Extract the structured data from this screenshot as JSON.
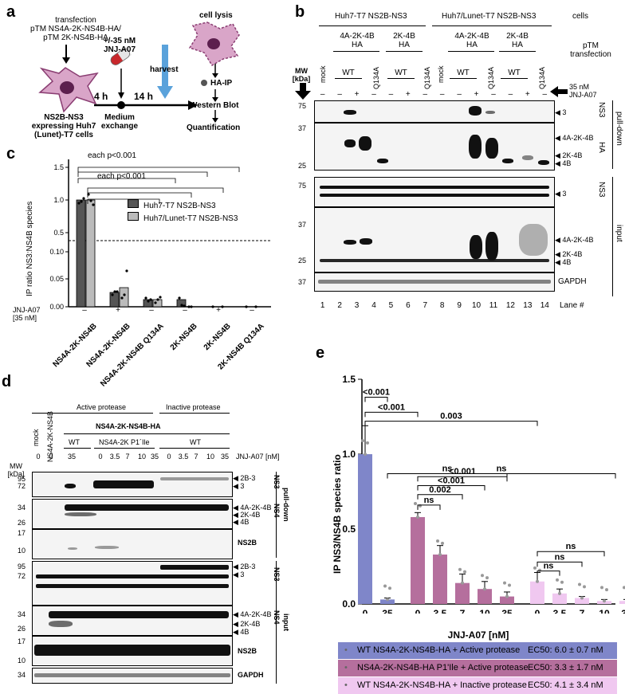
{
  "panels": {
    "a": "a",
    "b": "b",
    "c": "c",
    "d": "d",
    "e": "e"
  },
  "schematic": {
    "transfection_lines": [
      "transfection",
      "pTM NS4A-2K-NS4B-HA/",
      "pTM 2K-NS4B-HA"
    ],
    "cells_lines": [
      "NS2B-NS3",
      "expressing Huh7",
      "(Lunet)-T7 cells"
    ],
    "drug_lines": [
      "+/-35 nM",
      "JNJ-A07"
    ],
    "time1": "4 h",
    "time2": "14 h",
    "medium_lines": [
      "Medium",
      "exchange"
    ],
    "harvest": "harvest",
    "steps": [
      "cell lysis",
      "HA-IP",
      "Western Blot",
      "Quantification"
    ]
  },
  "panel_b": {
    "cells_label": "cells",
    "group1": "Huh7-T7 NS2B-NS3",
    "group2": "Huh7/Lunet-T7 NS2B-NS3",
    "construct1": [
      "4A-2K-4B",
      "HA"
    ],
    "construct2": [
      "2K-4B",
      "HA"
    ],
    "ptm": [
      "pTM",
      "transfection"
    ],
    "mock": "mock",
    "wt": "WT",
    "q134a": "Q134A",
    "drug": [
      "35 nM",
      "JNJ-A07"
    ],
    "mw": [
      "MW",
      "[kDa]"
    ],
    "signs": [
      "–",
      "–",
      "+",
      "–",
      "–",
      "+",
      "–",
      "–",
      "–",
      "+",
      "–",
      "–",
      "+",
      "–"
    ],
    "lane_numbers": [
      "1",
      "2",
      "3",
      "4",
      "5",
      "6",
      "7",
      "8",
      "9",
      "10",
      "11",
      "12",
      "13",
      "14"
    ],
    "lane_label": "Lane #",
    "pulldown": "pull-down",
    "input": "input",
    "ab_ns3": "NS3",
    "ab_ha": "HA",
    "ab_gapdh": "GAPDH",
    "mw_marks": {
      "m75": "75",
      "m37": "37",
      "m25": "25"
    },
    "band_labels": {
      "three": "3",
      "b4a": "4A-2K-4B",
      "b2k": "2K-4B",
      "b4b": "4B"
    }
  },
  "panel_c": {
    "ylabel": "IP ratio NS3:NS4B species",
    "yticks_top": [
      "1.5",
      "1.0",
      "0.5"
    ],
    "yticks_bottom": [
      "0.10",
      "0.05",
      "0.00"
    ],
    "legend": [
      "Huh7-T7 NS2B-NS3",
      "Huh7/Lunet-T7 NS2B-NS3"
    ],
    "sig1": "each p<0.001",
    "sig2": "each p<0.001",
    "drug_label": [
      "JNJ-A07",
      "[35 nM]"
    ],
    "signs": [
      "–",
      "+",
      "–",
      "–",
      "+",
      "–"
    ],
    "categories": [
      "NS4A-2K-NS4B",
      "NS4A-2K-NS4B",
      "NS4A-2K-NS4B Q134A",
      "2K-NS4B",
      "2K-NS4B",
      "2K-NS4B Q134A"
    ]
  },
  "panel_d": {
    "active": "Active protease",
    "inactive": "Inactive protease",
    "mock": "mock",
    "ctrl": "NS4A-2K-NS4B",
    "construct": "NS4A-2K-NS4B-HA",
    "wt": "WT",
    "p1": "NS4A-2K P1´Ile",
    "conc": [
      "0",
      "0",
      "35",
      "0",
      "3.5",
      "7",
      "10",
      "35",
      "0",
      "3.5",
      "7",
      "10",
      "35"
    ],
    "conc_label": "JNJ-A07 [nM]",
    "mw": [
      "MW",
      "[kDa]"
    ],
    "pulldown": "pull-down",
    "input": "input",
    "ab": {
      "ns3": "NS3",
      "ns4": "NS4",
      "ns2b": "NS2B",
      "gapdh": "GAPDH"
    },
    "marks": {
      "m95": "95",
      "m72": "72",
      "m34": "34",
      "m26": "26",
      "m17": "17",
      "m10": "10"
    },
    "band_labels": {
      "b2b3": "2B-3",
      "three": "3",
      "b4a": "4A-2K-4B",
      "b2k": "2K-4B",
      "b4b": "4B"
    }
  },
  "chart_data": {
    "type": "bar",
    "ylabel": "IP NS3/NS4B species ratio",
    "xlabel": "JNJ-A07 [nM]",
    "ylim": [
      0,
      1.5
    ],
    "yticks": [
      "0.0",
      "0.5",
      "1.0",
      "1.5"
    ],
    "series": [
      {
        "name": "WT NS4A-2K-NS4B-HA + Active protease",
        "x": [
          "0",
          "35"
        ],
        "values": [
          1.0,
          0.03
        ],
        "errors": [
          0.19,
          0.01
        ],
        "color": "#7f86c9",
        "ec50": "EC50: 6.0 ± 0.7 nM"
      },
      {
        "name": "NS4A-2K-NS4B-HA P1'Ile + Active protease",
        "x": [
          "0",
          "3.5",
          "7",
          "10",
          "35"
        ],
        "values": [
          0.58,
          0.33,
          0.14,
          0.1,
          0.05
        ],
        "errors": [
          0.03,
          0.06,
          0.06,
          0.05,
          0.03
        ],
        "color": "#b56f9d",
        "ec50": "EC50: 3.3 ± 1.7 nM"
      },
      {
        "name": "WT NS4A-2K-NS4B-HA + Inactive protease",
        "x": [
          "0",
          "3.5",
          "7",
          "10",
          "35"
        ],
        "values": [
          0.15,
          0.07,
          0.04,
          0.02,
          0.02
        ],
        "errors": [
          0.06,
          0.03,
          0.01,
          0.01,
          0.01
        ],
        "color": "#f0c8f0",
        "ec50": "EC50: 4.1 ± 3.4 nM"
      }
    ],
    "significance": [
      "<0.001",
      "<0.001",
      "0.003",
      "ns",
      "ns",
      "0.002",
      "<0.001",
      "<0.001",
      "ns",
      "ns",
      "ns",
      "ns"
    ]
  }
}
